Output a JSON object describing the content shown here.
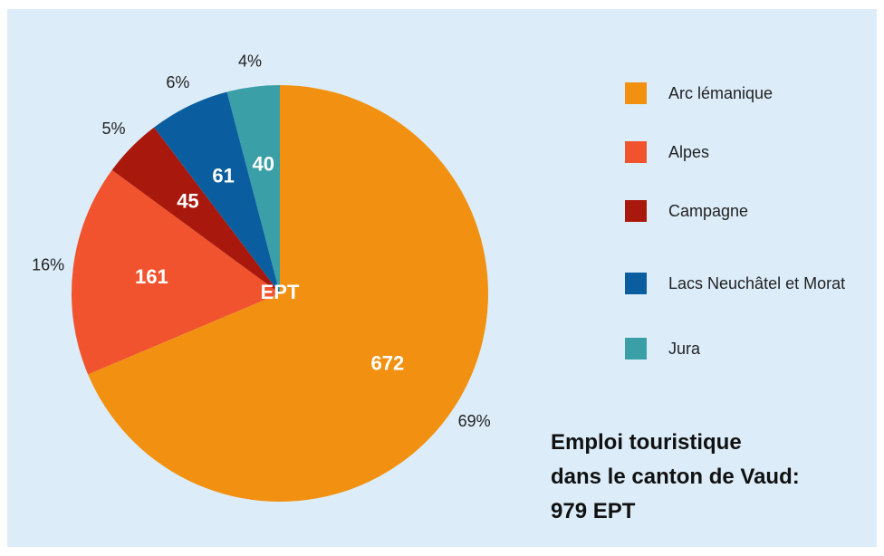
{
  "chart_data": {
    "type": "pie",
    "center_label": "EPT",
    "categories": [
      "Arc lémanique",
      "Alpes",
      "Campagne",
      "Lacs Neuchâtel et Morat",
      "Jura"
    ],
    "values": [
      672,
      161,
      45,
      61,
      40
    ],
    "percentage_labels": [
      "69%",
      "16%",
      "5%",
      "6%",
      "4%"
    ],
    "colors": [
      "#f29111",
      "#f0532e",
      "#a8180c",
      "#0a5e9f",
      "#3a9fa7"
    ],
    "title_lines": [
      "Emploi touristique",
      "dans le canton de Vaud:",
      "979 EPT"
    ],
    "legend": "right"
  }
}
